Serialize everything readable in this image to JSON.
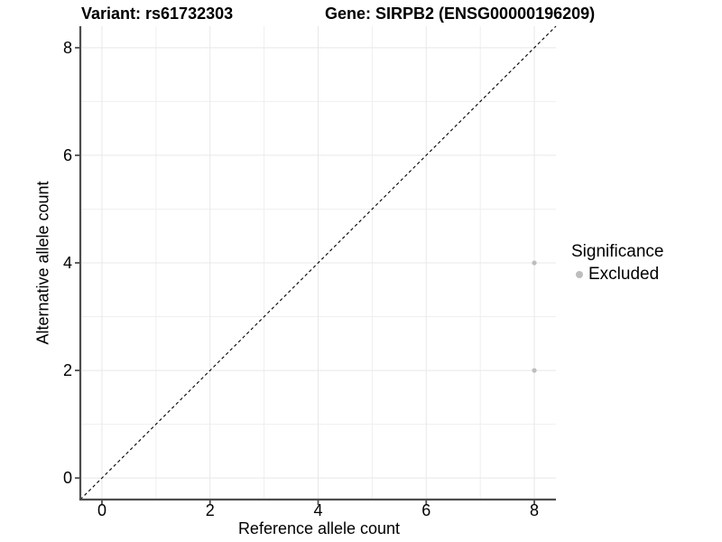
{
  "chart_data": {
    "type": "scatter",
    "title_left": "Variant: rs61732303",
    "title_right": "Gene: SIRPB2 (ENSG00000196209)",
    "xlabel": "Reference allele count",
    "ylabel": "Alternative allele count",
    "xlim": [
      -0.4,
      8.4
    ],
    "ylim": [
      -0.4,
      8.4
    ],
    "xticks": [
      0,
      2,
      4,
      6,
      8
    ],
    "yticks": [
      0,
      2,
      4,
      6,
      8
    ],
    "minor_gridlines_x": [
      1,
      3,
      5,
      7
    ],
    "minor_gridlines_y": [
      1,
      3,
      5,
      7
    ],
    "grid": true,
    "identity_line": {
      "slope": 1,
      "intercept": 0,
      "style": "dashed",
      "color": "#000000"
    },
    "series": [
      {
        "name": "Excluded",
        "color": "#bdbdbd",
        "points": [
          {
            "x": 8,
            "y": 4
          },
          {
            "x": 8,
            "y": 2
          }
        ]
      }
    ],
    "legend": {
      "title": "Significance",
      "position": "right",
      "items": [
        {
          "label": "Excluded",
          "color": "#bdbdbd"
        }
      ]
    },
    "colors": {
      "grid_major": "#e8e8e8",
      "grid_minor": "#efefef",
      "axis": "#4d4d4d",
      "tick_text": "#000000"
    }
  }
}
